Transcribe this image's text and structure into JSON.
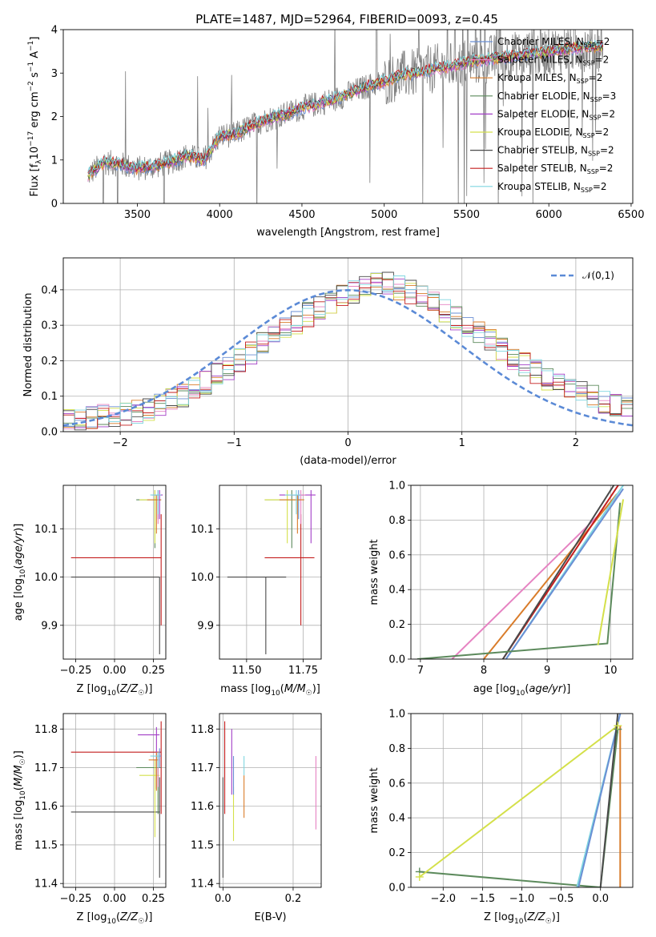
{
  "chart_data": [
    {
      "id": "spectrum",
      "type": "line",
      "title": "PLATE=1487, MJD=52964, FIBERID=0093, z=0.45",
      "xlabel": "wavelength [Angstrom, rest frame]",
      "ylabel_parts": [
        "Flux [f",
        "λ",
        "10",
        "−17",
        " erg cm",
        "−2",
        " s",
        "−1",
        " A",
        "−1",
        "]"
      ],
      "xlim": [
        3050,
        6510
      ],
      "ylim": [
        0,
        4
      ],
      "xticks": [
        3500,
        4000,
        4500,
        5000,
        5500,
        6000,
        6500
      ],
      "yticks": [
        0,
        1,
        2,
        3,
        4
      ],
      "data_range": [
        3200,
        6330
      ],
      "data_color": "#808080",
      "model_curve": {
        "x": [
          3200,
          3300,
          3400,
          3500,
          3600,
          3700,
          3800,
          3900,
          3950,
          4000,
          4100,
          4200,
          4300,
          4400,
          4500,
          4600,
          4700,
          4800,
          4900,
          5000,
          5100,
          5200,
          5300,
          5400,
          5500,
          5600,
          5700,
          5800,
          5900,
          6000,
          6100,
          6200,
          6330
        ],
        "y": [
          0.65,
          0.95,
          0.9,
          0.8,
          0.85,
          0.95,
          1.1,
          1.0,
          1.25,
          1.55,
          1.6,
          1.8,
          1.95,
          2.05,
          2.2,
          2.3,
          2.4,
          2.55,
          2.7,
          2.8,
          2.95,
          3.0,
          3.1,
          3.15,
          3.25,
          3.3,
          3.35,
          3.4,
          3.45,
          3.5,
          3.55,
          3.6,
          3.6
        ]
      },
      "series": [
        {
          "label": "Chabrier MILES, N",
          "sub": "SSP",
          "suffix": "=2",
          "color": "#6a8fd4"
        },
        {
          "label": "Salpeter MILES, N",
          "sub": "SSP",
          "suffix": "=2",
          "color": "#e683c2"
        },
        {
          "label": "Kroupa MILES, N",
          "sub": "SSP",
          "suffix": "=2",
          "color": "#d97c2a"
        },
        {
          "label": "Chabrier ELODIE, N",
          "sub": "SSP",
          "suffix": "=3",
          "color": "#5c8a5c"
        },
        {
          "label": "Salpeter ELODIE, N",
          "sub": "SSP",
          "suffix": "=2",
          "color": "#a33fc7"
        },
        {
          "label": "Kroupa ELODIE, N",
          "sub": "SSP",
          "suffix": "=2",
          "color": "#d4e04a"
        },
        {
          "label": "Chabrier STELIB, N",
          "sub": "SSP",
          "suffix": "=2",
          "color": "#4a4a4a"
        },
        {
          "label": "Salpeter STELIB, N",
          "sub": "SSP",
          "suffix": "=2",
          "color": "#c41e1e"
        },
        {
          "label": "Kroupa STELIB, N",
          "sub": "SSP",
          "suffix": "=2",
          "color": "#7fd6e0"
        }
      ]
    },
    {
      "id": "residuals",
      "type": "histogram",
      "xlabel": "(data-model)/error",
      "ylabel": "Normed distribution",
      "xlim": [
        -2.5,
        2.5
      ],
      "ylim": [
        0,
        0.49
      ],
      "xticks": [
        -2,
        -1,
        0,
        1,
        2
      ],
      "yticks": [
        0.0,
        0.1,
        0.2,
        0.3,
        0.4
      ],
      "grid": true,
      "legend_label": "𝒩(0,1)",
      "gaussian_color": "#5b8ad6",
      "bin_width": 0.1,
      "envelope_x": [
        -2.5,
        -2.2,
        -1.8,
        -1.4,
        -1.0,
        -0.6,
        -0.3,
        0.0,
        0.3,
        0.6,
        1.0,
        1.4,
        1.8,
        2.2,
        2.5
      ],
      "envelope_y": [
        0.03,
        0.04,
        0.06,
        0.11,
        0.19,
        0.28,
        0.34,
        0.39,
        0.42,
        0.39,
        0.31,
        0.22,
        0.14,
        0.09,
        0.06
      ]
    },
    {
      "id": "age_vs_Z",
      "type": "errorbar",
      "xlabel": "Z [log10(Z/Z☉)]",
      "ylabel": "age  [log10(age/yr)]",
      "xlim": [
        -0.33,
        0.33
      ],
      "ylim": [
        9.83,
        10.19
      ],
      "xticks": [
        -0.25,
        0.0,
        0.25
      ],
      "xticklabels": [
        "−0.25",
        "0.00",
        "0.25"
      ],
      "yticks": [
        9.9,
        10.0,
        10.1
      ],
      "points": [
        {
          "s": 6,
          "x": 0.29,
          "y": 10.0,
          "xerr": [
            0.57,
            0.0
          ],
          "yerr": [
            0.16,
            0.0
          ]
        },
        {
          "s": 7,
          "x": 0.3,
          "y": 10.04,
          "xerr": [
            0.58,
            0.0
          ],
          "yerr": [
            0.14,
            0.09
          ]
        },
        {
          "s": 3,
          "x": 0.26,
          "y": 10.16,
          "xerr": [
            0.12,
            0.04
          ],
          "yerr": [
            0.1,
            0.02
          ]
        },
        {
          "s": 5,
          "x": 0.26,
          "y": 10.16,
          "xerr": [
            0.1,
            0.04
          ],
          "yerr": [
            0.09,
            0.02
          ]
        },
        {
          "s": 0,
          "x": 0.28,
          "y": 10.17,
          "xerr": [
            0.04,
            0.02
          ],
          "yerr": [
            0.05,
            0.01
          ]
        },
        {
          "s": 1,
          "x": 0.28,
          "y": 10.17,
          "xerr": [
            0.04,
            0.02
          ],
          "yerr": [
            0.06,
            0.01
          ]
        },
        {
          "s": 2,
          "x": 0.27,
          "y": 10.16,
          "xerr": [
            0.06,
            0.03
          ],
          "yerr": [
            0.07,
            0.01
          ]
        },
        {
          "s": 4,
          "x": 0.29,
          "y": 10.17,
          "xerr": [
            0.03,
            0.02
          ],
          "yerr": [
            0.05,
            0.01
          ]
        },
        {
          "s": 8,
          "x": 0.28,
          "y": 10.17,
          "xerr": [
            0.05,
            0.02
          ],
          "yerr": [
            0.04,
            0.01
          ]
        }
      ]
    },
    {
      "id": "age_vs_mass",
      "type": "errorbar",
      "xlabel": "mass [log10(M/M☉)]",
      "ylabel": "",
      "xlim": [
        11.38,
        11.83
      ],
      "ylim": [
        9.83,
        10.19
      ],
      "xticks": [
        11.5,
        11.75
      ],
      "xticklabels": [
        "11.50",
        "11.75"
      ],
      "yticks": [
        9.9,
        10.0,
        10.1
      ],
      "points": [
        {
          "s": 6,
          "x": 11.585,
          "y": 10.0,
          "xerr": [
            0.17,
            0.09
          ],
          "yerr": [
            0.16,
            0.0
          ]
        },
        {
          "s": 7,
          "x": 11.74,
          "y": 10.04,
          "xerr": [
            0.16,
            0.06
          ],
          "yerr": [
            0.14,
            0.09
          ]
        },
        {
          "s": 3,
          "x": 11.7,
          "y": 10.16,
          "xerr": [
            0.12,
            0.04
          ],
          "yerr": [
            0.1,
            0.02
          ]
        },
        {
          "s": 5,
          "x": 11.68,
          "y": 10.16,
          "xerr": [
            0.1,
            0.04
          ],
          "yerr": [
            0.09,
            0.02
          ]
        },
        {
          "s": 4,
          "x": 11.785,
          "y": 10.17,
          "xerr": [
            0.14,
            0.02
          ],
          "yerr": [
            0.1,
            0.01
          ]
        },
        {
          "s": 0,
          "x": 11.73,
          "y": 10.17,
          "xerr": [
            0.03,
            0.02
          ],
          "yerr": [
            0.05,
            0.01
          ]
        },
        {
          "s": 1,
          "x": 11.74,
          "y": 10.17,
          "xerr": [
            0.04,
            0.02
          ],
          "yerr": [
            0.06,
            0.01
          ]
        },
        {
          "s": 2,
          "x": 11.725,
          "y": 10.16,
          "xerr": [
            0.08,
            0.03
          ],
          "yerr": [
            0.07,
            0.01
          ]
        },
        {
          "s": 8,
          "x": 11.72,
          "y": 10.17,
          "xerr": [
            0.05,
            0.02
          ],
          "yerr": [
            0.04,
            0.01
          ]
        }
      ]
    },
    {
      "id": "massweight_vs_age",
      "type": "line",
      "xlabel": "age  [log10(age/yr)]",
      "ylabel": "mass weight",
      "xlim": [
        6.85,
        10.35
      ],
      "ylim": [
        0,
        1.0
      ],
      "xticks": [
        7,
        8,
        9,
        10
      ],
      "yticks": [
        0.0,
        0.2,
        0.4,
        0.6,
        0.8,
        1.0
      ],
      "series": [
        {
          "s": 1,
          "x": [
            7.5,
            10.15
          ],
          "y": [
            0.0,
            0.95
          ]
        },
        {
          "s": 2,
          "x": [
            8.0,
            10.1
          ],
          "y": [
            0.0,
            0.95
          ]
        },
        {
          "s": 7,
          "x": [
            8.3,
            10.12
          ],
          "y": [
            0.0,
            1.0
          ]
        },
        {
          "s": 6,
          "x": [
            8.3,
            10.05
          ],
          "y": [
            0.0,
            1.0
          ]
        },
        {
          "s": 8,
          "x": [
            8.35,
            10.2
          ],
          "y": [
            0.0,
            1.0
          ]
        },
        {
          "s": 0,
          "x": [
            8.35,
            10.2
          ],
          "y": [
            0.0,
            0.98
          ]
        },
        {
          "s": 3,
          "x": [
            6.95,
            9.95,
            10.15
          ],
          "y": [
            0.0,
            0.09,
            0.9
          ]
        },
        {
          "s": 5,
          "x": [
            9.8,
            10.2
          ],
          "y": [
            0.08,
            0.92
          ]
        }
      ]
    },
    {
      "id": "mass_vs_Z",
      "type": "errorbar",
      "xlabel": "Z [log10(Z/Z☉)]",
      "ylabel": "mass [log10(M/M☉)]",
      "xlim": [
        -0.33,
        0.33
      ],
      "ylim": [
        11.39,
        11.84
      ],
      "xticks": [
        -0.25,
        0.0,
        0.25
      ],
      "xticklabels": [
        "−0.25",
        "0.00",
        "0.25"
      ],
      "yticks": [
        11.4,
        11.5,
        11.6,
        11.7,
        11.8
      ],
      "points": [
        {
          "s": 6,
          "x": 0.29,
          "y": 11.585,
          "xerr": [
            0.57,
            0.0
          ],
          "yerr": [
            0.17,
            0.09
          ]
        },
        {
          "s": 7,
          "x": 0.3,
          "y": 11.74,
          "xerr": [
            0.58,
            0.0
          ],
          "yerr": [
            0.16,
            0.08
          ]
        },
        {
          "s": 4,
          "x": 0.27,
          "y": 11.785,
          "xerr": [
            0.12,
            0.02
          ],
          "yerr": [
            0.14,
            0.02
          ]
        },
        {
          "s": 3,
          "x": 0.28,
          "y": 11.7,
          "xerr": [
            0.14,
            0.02
          ],
          "yerr": [
            0.12,
            0.03
          ]
        },
        {
          "s": 5,
          "x": 0.26,
          "y": 11.68,
          "xerr": [
            0.1,
            0.03
          ],
          "yerr": [
            0.16,
            0.04
          ]
        },
        {
          "s": 0,
          "x": 0.29,
          "y": 11.73,
          "xerr": [
            0.04,
            0.01
          ],
          "yerr": [
            0.03,
            0.02
          ]
        },
        {
          "s": 1,
          "x": 0.28,
          "y": 11.72,
          "xerr": [
            0.03,
            0.01
          ],
          "yerr": [
            0.07,
            0.02
          ]
        },
        {
          "s": 2,
          "x": 0.27,
          "y": 11.72,
          "xerr": [
            0.05,
            0.01
          ],
          "yerr": [
            0.08,
            0.02
          ]
        },
        {
          "s": 8,
          "x": 0.28,
          "y": 11.73,
          "xerr": [
            0.05,
            0.01
          ],
          "yerr": [
            0.03,
            0.01
          ]
        }
      ]
    },
    {
      "id": "mass_vs_ebv",
      "type": "errorbar",
      "xlabel": "E(B-V)",
      "ylabel": "",
      "xlim": [
        -0.01,
        0.28
      ],
      "ylim": [
        11.39,
        11.84
      ],
      "xticks": [
        0.0,
        0.2
      ],
      "xticklabels": [
        "0.0",
        "0.2"
      ],
      "yticks": [
        11.4,
        11.5,
        11.6,
        11.7,
        11.8
      ],
      "points": [
        {
          "s": 6,
          "x": 0.0,
          "y": 11.585,
          "xerr": [
            0,
            0
          ],
          "yerr": [
            0.17,
            0.09
          ]
        },
        {
          "s": 7,
          "x": 0.005,
          "y": 11.74,
          "xerr": [
            0,
            0
          ],
          "yerr": [
            0.16,
            0.08
          ]
        },
        {
          "s": 4,
          "x": 0.025,
          "y": 11.72,
          "xerr": [
            0,
            0
          ],
          "yerr": [
            0.09,
            0.08
          ]
        },
        {
          "s": 5,
          "x": 0.03,
          "y": 11.6,
          "xerr": [
            0,
            0
          ],
          "yerr": [
            0.09,
            0.05
          ]
        },
        {
          "s": 0,
          "x": 0.03,
          "y": 11.68,
          "xerr": [
            0,
            0
          ],
          "yerr": [
            0.05,
            0.05
          ]
        },
        {
          "s": 2,
          "x": 0.06,
          "y": 11.63,
          "xerr": [
            0,
            0
          ],
          "yerr": [
            0.06,
            0.05
          ]
        },
        {
          "s": 8,
          "x": 0.06,
          "y": 11.7,
          "xerr": [
            0,
            0
          ],
          "yerr": [
            0.02,
            0.03
          ]
        },
        {
          "s": 1,
          "x": 0.265,
          "y": 11.63,
          "xerr": [
            0,
            0
          ],
          "yerr": [
            0.09,
            0.1
          ]
        }
      ]
    },
    {
      "id": "massweight_vs_Z",
      "type": "line",
      "xlabel": "Z [log10(Z/Z☉)]",
      "ylabel": "mass weight",
      "xlim": [
        -2.41,
        0.41
      ],
      "ylim": [
        0,
        1.0
      ],
      "xticks": [
        -2.0,
        -1.5,
        -1.0,
        -0.5,
        0.0
      ],
      "xticklabels": [
        "−2.0",
        "−1.5",
        "−1.0",
        "−0.5",
        "0.0"
      ],
      "yticks": [
        0.0,
        0.2,
        0.4,
        0.6,
        0.8,
        1.0
      ],
      "markers": [
        {
          "s": 3,
          "x": -2.3,
          "y": 0.09
        },
        {
          "s": 5,
          "x": -2.3,
          "y": 0.06
        },
        {
          "s": 3,
          "x": 0.22,
          "y": 0.91
        },
        {
          "s": 5,
          "x": 0.22,
          "y": 0.93
        }
      ],
      "series": [
        {
          "s": 3,
          "x": [
            -2.3,
            0.0,
            0.22
          ],
          "y": [
            0.09,
            0.0,
            0.91
          ]
        },
        {
          "s": 5,
          "x": [
            -2.3,
            0.22
          ],
          "y": [
            0.06,
            0.93
          ]
        },
        {
          "s": 8,
          "x": [
            -0.3,
            0.25
          ],
          "y": [
            0.0,
            1.0
          ]
        },
        {
          "s": 0,
          "x": [
            -0.28,
            0.25
          ],
          "y": [
            0.0,
            1.0
          ]
        },
        {
          "s": 6,
          "x": [
            0.0,
            0.22
          ],
          "y": [
            0.0,
            1.0
          ]
        },
        {
          "s": 2,
          "x": [
            0.25,
            0.25
          ],
          "y": [
            0.0,
            0.93
          ]
        }
      ]
    }
  ]
}
